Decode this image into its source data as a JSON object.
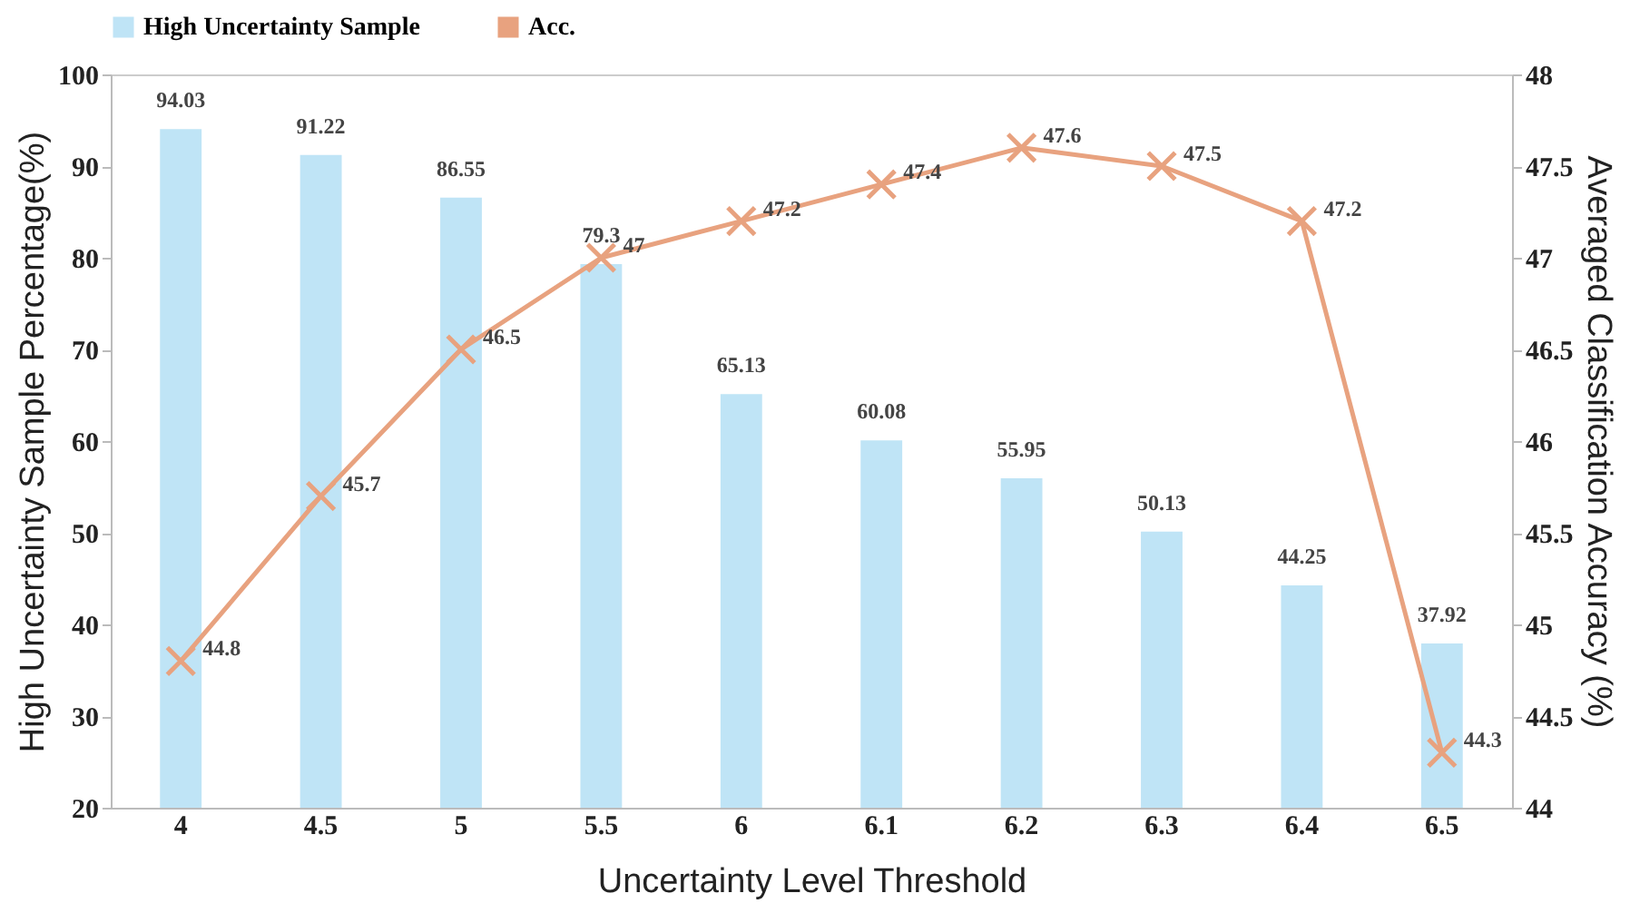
{
  "chart_data": {
    "type": "bar",
    "xlabel": "Uncertainty Level Threshold",
    "ylabel": "High Uncertainty Sample Percentage(%)",
    "y2label": "Averaged Classification Accuracy (%)",
    "categories": [
      "4",
      "4.5",
      "5",
      "5.5",
      "6",
      "6.1",
      "6.2",
      "6.3",
      "6.4",
      "6.5"
    ],
    "series": [
      {
        "name": "High Uncertainty Sample",
        "color": "#bfe4f6",
        "values": [
          94.03,
          91.22,
          86.55,
          79.3,
          65.13,
          60.08,
          55.95,
          50.13,
          44.25,
          37.92
        ]
      },
      {
        "name": "Acc.",
        "type": "line",
        "axis": "y2",
        "color": "#e8a27f",
        "marker": "cross",
        "values": [
          44.8,
          45.7,
          46.5,
          47,
          47.2,
          47.4,
          47.6,
          47.5,
          47.2,
          44.3
        ]
      }
    ],
    "ylim": [
      20,
      100
    ],
    "yticks": [
      20,
      30,
      40,
      50,
      60,
      70,
      80,
      90,
      100
    ],
    "y2lim": [
      44,
      48
    ],
    "y2ticks": [
      44,
      44.5,
      45,
      45.5,
      46,
      46.5,
      47,
      47.5,
      48
    ],
    "data_labels": true,
    "legend": "top",
    "grid": false
  }
}
